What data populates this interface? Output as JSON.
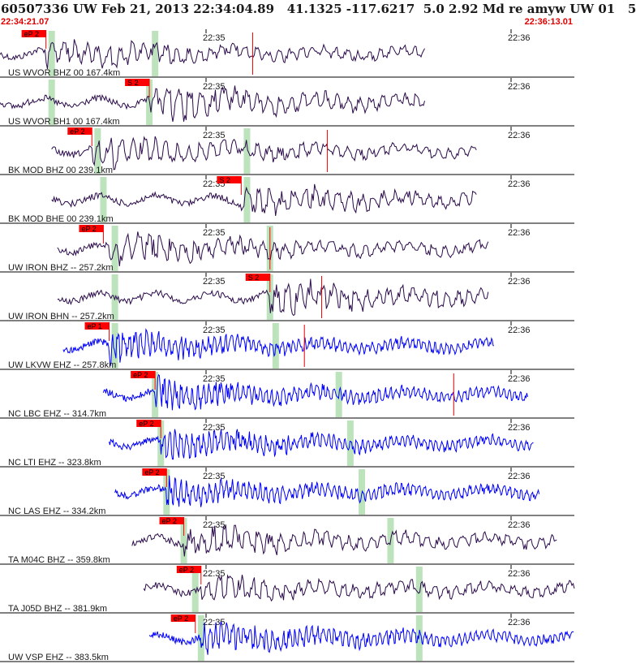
{
  "header": {
    "title": "60507336 UW Feb 21, 2013 22:34:04.89   41.1325 -117.6217  5.0 2.92 Md re amyw UW 01   5",
    "start_time": "22:34:21.07",
    "end_time": "22:36:13.01"
  },
  "colors": {
    "trace_dark": "#2a0a4a",
    "trace_blue": "#0000ff",
    "pick": "#ff0000",
    "shade": "#bde3bd",
    "text_time": "#e00000"
  },
  "chart_data": {
    "type": "line",
    "title": "",
    "time_ticks": [
      "22:35",
      "22:36"
    ],
    "traces": [
      {
        "label": "US WVOR BHZ 00 167.4km",
        "color": "dark",
        "start": 0.0,
        "end": 0.74,
        "onset": 0.08,
        "amp": 0.55,
        "pick": {
          "text": "eP 2",
          "at": 0.08
        },
        "s_pick": 0.44,
        "shades": [
          0.09,
          0.27
        ]
      },
      {
        "label": "US WVOR BH1 00 167.4km",
        "color": "dark",
        "start": 0.0,
        "end": 0.74,
        "onset": 0.26,
        "amp": 0.7,
        "pick": {
          "text": "S 2",
          "at": 0.26
        },
        "s_pick": null,
        "shades": [
          0.09,
          0.26
        ]
      },
      {
        "label": "BK MOD BHZ 00 239.1km",
        "color": "dark",
        "start": 0.09,
        "end": 0.83,
        "onset": 0.16,
        "amp": 0.55,
        "pick": {
          "text": "eP 2",
          "at": 0.16
        },
        "s_pick": 0.57,
        "shades": [
          0.17,
          0.43
        ]
      },
      {
        "label": "BK MOD BHE 00 239.1km",
        "color": "dark",
        "start": 0.09,
        "end": 0.83,
        "onset": 0.42,
        "amp": 0.6,
        "pick": {
          "text": "S 2",
          "at": 0.42
        },
        "s_pick": null,
        "shades": [
          0.18,
          0.43
        ]
      },
      {
        "label": "UW IRON BHZ -- 257.2km",
        "color": "dark",
        "start": 0.1,
        "end": 0.85,
        "onset": 0.19,
        "amp": 0.6,
        "pick": {
          "text": "eP 2",
          "at": 0.18
        },
        "s_pick": 0.47,
        "shades": [
          0.2,
          0.47
        ]
      },
      {
        "label": "UW IRON BHN -- 257.2km",
        "color": "dark",
        "start": 0.1,
        "end": 0.85,
        "onset": 0.47,
        "amp": 0.65,
        "pick": {
          "text": "S 2",
          "at": 0.47
        },
        "s_pick": 0.56,
        "shades": [
          0.2,
          0.47
        ]
      },
      {
        "label": "UW LKVW EHZ -- 257.8km",
        "color": "blue",
        "start": 0.11,
        "end": 0.86,
        "onset": 0.19,
        "amp": 0.6,
        "pick": {
          "text": "eP 1",
          "at": 0.19
        },
        "s_pick": 0.53,
        "shades": [
          0.2,
          0.48
        ]
      },
      {
        "label": "NC LBC EHZ -- 314.7km",
        "color": "blue",
        "start": 0.18,
        "end": 0.92,
        "onset": 0.27,
        "amp": 0.55,
        "pick": {
          "text": "eP 2",
          "at": 0.27
        },
        "s_pick": 0.79,
        "shades": [
          0.27,
          0.59
        ]
      },
      {
        "label": "NC LTI EHZ -- 323.8km",
        "color": "blue",
        "start": 0.19,
        "end": 0.93,
        "onset": 0.28,
        "amp": 0.55,
        "pick": {
          "text": "eP 2",
          "at": 0.28
        },
        "s_pick": null,
        "shades": [
          0.28,
          0.61
        ]
      },
      {
        "label": "NC LAS EHZ -- 334.2km",
        "color": "blue",
        "start": 0.2,
        "end": 0.94,
        "onset": 0.29,
        "amp": 0.5,
        "pick": {
          "text": "eP 2",
          "at": 0.29
        },
        "s_pick": null,
        "shades": [
          0.29,
          0.63
        ]
      },
      {
        "label": "TA M04C BHZ -- 359.8km",
        "color": "dark",
        "start": 0.23,
        "end": 0.97,
        "onset": 0.32,
        "amp": 0.55,
        "pick": {
          "text": "eP 2",
          "at": 0.32
        },
        "s_pick": null,
        "shades": [
          0.32,
          0.68
        ]
      },
      {
        "label": "TA J05D BHZ -- 381.9km",
        "color": "dark",
        "start": 0.25,
        "end": 1.0,
        "onset": 0.35,
        "amp": 0.5,
        "pick": {
          "text": "eP 2",
          "at": 0.35
        },
        "s_pick": null,
        "shades": [
          0.34,
          0.73
        ]
      },
      {
        "label": "UW VSP EHZ -- 383.5km",
        "color": "blue",
        "start": 0.26,
        "end": 1.0,
        "onset": 0.35,
        "amp": 0.55,
        "pick": {
          "text": "eP 2",
          "at": 0.34
        },
        "s_pick": null,
        "shades": [
          0.35,
          0.73
        ]
      }
    ]
  }
}
